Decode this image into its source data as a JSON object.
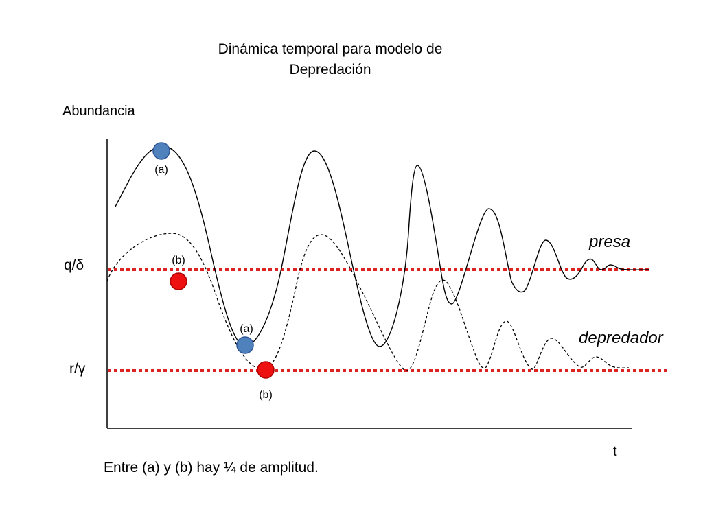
{
  "title": {
    "line1": "Dinámica temporal para modelo de",
    "line2": "Depredación"
  },
  "axes": {
    "y_label": "Abundancia",
    "x_label": "t"
  },
  "levels": {
    "prey_equilibrium": "q/δ",
    "predator_equilibrium": "r/γ",
    "line_color": "#dd2222"
  },
  "curves": {
    "prey_label": "presa",
    "predator_label": "depredador"
  },
  "markers": {
    "a_label": "(a)",
    "b_label": "(b)",
    "prey_color": "#4f81bd",
    "predator_color": "#ee1111"
  },
  "note": "Entre (a) y (b) hay ¼  de amplitud."
}
